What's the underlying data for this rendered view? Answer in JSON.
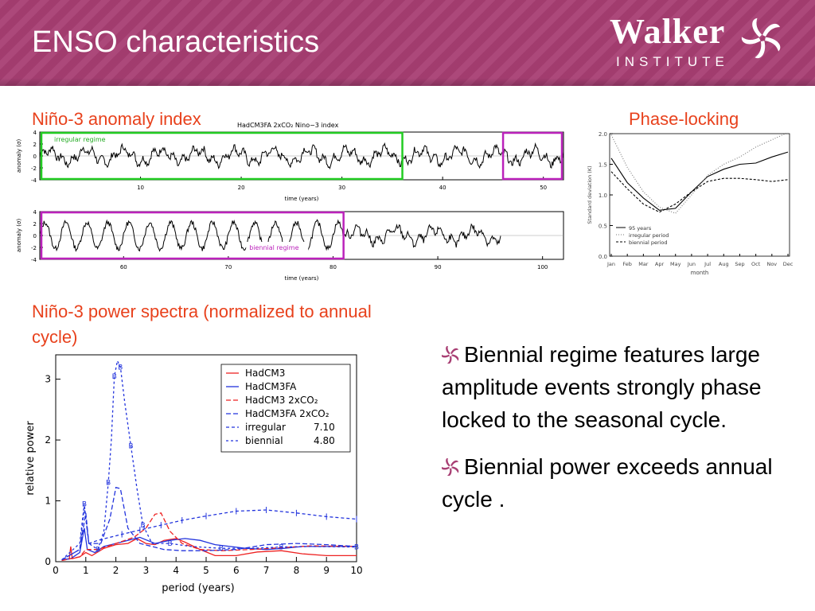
{
  "slide": {
    "title": "ENSO characteristics",
    "logo": {
      "word": "Walker",
      "sub": "INSTITUTE"
    },
    "labels": {
      "nino3_index": "Niño-3 anomaly index",
      "phase_locking": "Phase-locking",
      "power_spectra": "Niño-3 power spectra (normalized to annual cycle)"
    },
    "bullets": [
      "Biennial regime features large amplitude events strongly phase locked to the seasonal cycle.",
      "Biennial power exceeds annual cycle ."
    ],
    "colors": {
      "header": "#a83e73",
      "accent_text": "#e8411c",
      "regime_green": "#22cc22",
      "regime_magenta": "#bb22bb"
    }
  },
  "chart_data": [
    {
      "type": "line",
      "title": "HadCM3FA 2xCO₂ Nino−3 index",
      "xlabel": "time (years)",
      "ylabel": "anomaly (σ)",
      "xlim": [
        0,
        52
      ],
      "ylim": [
        -4,
        4
      ],
      "xticks": [
        10,
        20,
        30,
        40,
        50
      ],
      "yticks": [
        4,
        2,
        0,
        -2,
        -4
      ],
      "annotations": [
        {
          "text": "irregular regime",
          "x_range": [
            0,
            36
          ]
        },
        {
          "text": "",
          "x_range": [
            46,
            52
          ]
        }
      ]
    },
    {
      "type": "line",
      "xlabel": "time (years)",
      "ylabel": "anomaly (σ)",
      "xlim": [
        52,
        102
      ],
      "ylim": [
        -4,
        4
      ],
      "xticks": [
        60,
        70,
        80,
        90,
        100
      ],
      "yticks": [
        4,
        2,
        0,
        -2,
        -4
      ],
      "data_end": 96,
      "annotations": [
        {
          "text": "biennial regime",
          "x_range": [
            52,
            81
          ]
        }
      ]
    },
    {
      "type": "line",
      "xlabel": "month",
      "ylabel": "Standard deviation (K)",
      "categories": [
        "Jan",
        "Feb",
        "Mar",
        "Apr",
        "May",
        "Jun",
        "Jul",
        "Aug",
        "Sep",
        "Oct",
        "Nov",
        "Dec"
      ],
      "ylim": [
        0,
        2
      ],
      "yticks": [
        "2.0",
        "1.5",
        "1.0",
        "0.5",
        "0.0"
      ],
      "series": [
        {
          "name": "95 years",
          "style": "solid",
          "values": [
            1.6,
            1.2,
            0.95,
            0.75,
            0.78,
            1.05,
            1.3,
            1.42,
            1.5,
            1.52,
            1.62,
            1.7
          ]
        },
        {
          "name": "irregular period",
          "style": "dotted",
          "values": [
            1.98,
            1.45,
            1.05,
            0.8,
            0.7,
            1.0,
            1.32,
            1.5,
            1.62,
            1.78,
            1.9,
            2.02
          ]
        },
        {
          "name": "biennial period",
          "style": "dashed",
          "values": [
            1.38,
            1.1,
            0.85,
            0.72,
            0.85,
            1.05,
            1.22,
            1.27,
            1.27,
            1.25,
            1.22,
            1.25
          ]
        }
      ],
      "legend": "bottom-left"
    },
    {
      "type": "line",
      "xlabel": "period (years)",
      "ylabel": "relative power",
      "xlim": [
        0,
        10
      ],
      "ylim": [
        0,
        3.4
      ],
      "xticks": [
        0,
        1,
        2,
        3,
        4,
        5,
        6,
        7,
        8,
        9,
        10
      ],
      "yticks": [
        0,
        1,
        2,
        3
      ],
      "legend": "top-right",
      "series": [
        {
          "name": "HadCM3",
          "color": "#ee2222",
          "style": "solid",
          "points": [
            [
              0.2,
              0.02
            ],
            [
              0.45,
              0.05
            ],
            [
              0.5,
              0.25
            ],
            [
              0.55,
              0.05
            ],
            [
              0.8,
              0.08
            ],
            [
              1,
              0.15
            ],
            [
              1.2,
              0.1
            ],
            [
              1.6,
              0.22
            ],
            [
              2,
              0.28
            ],
            [
              2.4,
              0.3
            ],
            [
              2.7,
              0.38
            ],
            [
              3.0,
              0.3
            ],
            [
              3.3,
              0.28
            ],
            [
              3.6,
              0.35
            ],
            [
              4.0,
              0.38
            ],
            [
              4.3,
              0.32
            ],
            [
              4.8,
              0.2
            ],
            [
              5.3,
              0.1
            ],
            [
              6,
              0.1
            ],
            [
              6.7,
              0.16
            ],
            [
              7.5,
              0.18
            ],
            [
              8.2,
              0.13
            ],
            [
              9,
              0.1
            ],
            [
              10,
              0.1
            ]
          ]
        },
        {
          "name": "HadCM3FA",
          "color": "#2233dd",
          "style": "solid",
          "points": [
            [
              0.2,
              0.03
            ],
            [
              0.5,
              0.05
            ],
            [
              0.8,
              0.15
            ],
            [
              0.95,
              0.55
            ],
            [
              1.05,
              0.2
            ],
            [
              1.3,
              0.15
            ],
            [
              1.6,
              0.25
            ],
            [
              2,
              0.3
            ],
            [
              2.4,
              0.35
            ],
            [
              2.8,
              0.4
            ],
            [
              3.3,
              0.3
            ],
            [
              3.8,
              0.35
            ],
            [
              4.3,
              0.38
            ],
            [
              4.8,
              0.35
            ],
            [
              5.3,
              0.28
            ],
            [
              5.8,
              0.25
            ],
            [
              6.3,
              0.22
            ],
            [
              7,
              0.2
            ],
            [
              7.6,
              0.22
            ],
            [
              8.2,
              0.25
            ],
            [
              9,
              0.25
            ],
            [
              10,
              0.25
            ]
          ]
        },
        {
          "name": "HadCM3 2xCO₂",
          "color": "#ee2222",
          "style": "dashed",
          "points": [
            [
              0.2,
              0.02
            ],
            [
              0.8,
              0.08
            ],
            [
              1,
              0.2
            ],
            [
              1.4,
              0.2
            ],
            [
              2,
              0.3
            ],
            [
              2.6,
              0.4
            ],
            [
              3.0,
              0.55
            ],
            [
              3.3,
              0.78
            ],
            [
              3.5,
              0.8
            ],
            [
              3.8,
              0.5
            ],
            [
              4.2,
              0.3
            ],
            [
              4.8,
              0.2
            ],
            [
              5.5,
              0.18
            ],
            [
              6.5,
              0.2
            ],
            [
              7.5,
              0.23
            ],
            [
              8.5,
              0.26
            ],
            [
              10,
              0.25
            ]
          ]
        },
        {
          "name": "HadCM3FA 2xCO₂",
          "color": "#2233dd",
          "style": "dashed",
          "points": [
            [
              0.2,
              0.03
            ],
            [
              0.8,
              0.2
            ],
            [
              1.0,
              0.8
            ],
            [
              1.1,
              0.3
            ],
            [
              1.5,
              0.3
            ],
            [
              1.8,
              0.7
            ],
            [
              2.0,
              1.22
            ],
            [
              2.15,
              1.2
            ],
            [
              2.4,
              0.55
            ],
            [
              2.8,
              0.3
            ],
            [
              3.2,
              0.25
            ],
            [
              3.6,
              0.2
            ],
            [
              4.2,
              0.18
            ],
            [
              5,
              0.18
            ],
            [
              6,
              0.2
            ],
            [
              7,
              0.28
            ],
            [
              8,
              0.3
            ],
            [
              9,
              0.28
            ],
            [
              10,
              0.25
            ]
          ]
        },
        {
          "name": "irregular",
          "value_label": "7.10",
          "color": "#2233dd",
          "style": "dashed-marker-bar",
          "points": [
            [
              0.2,
              0.03
            ],
            [
              0.8,
              0.2
            ],
            [
              0.95,
              0.9
            ],
            [
              1.1,
              0.3
            ],
            [
              1.4,
              0.35
            ],
            [
              1.8,
              0.4
            ],
            [
              2.2,
              0.45
            ],
            [
              2.8,
              0.52
            ],
            [
              3.5,
              0.6
            ],
            [
              4.2,
              0.68
            ],
            [
              5,
              0.75
            ],
            [
              6,
              0.83
            ],
            [
              7,
              0.85
            ],
            [
              8,
              0.8
            ],
            [
              9,
              0.74
            ],
            [
              10,
              0.7
            ]
          ]
        },
        {
          "name": "biennial",
          "value_label": "4.80",
          "color": "#2233dd",
          "style": "dashed-marker-B",
          "points": [
            [
              0.2,
              0.03
            ],
            [
              0.8,
              0.3
            ],
            [
              0.95,
              0.95
            ],
            [
              1.1,
              0.3
            ],
            [
              1.4,
              0.2
            ],
            [
              1.6,
              0.5
            ],
            [
              1.75,
              1.3
            ],
            [
              1.85,
              2.0
            ],
            [
              1.95,
              3.05
            ],
            [
              2.05,
              3.3
            ],
            [
              2.15,
              3.2
            ],
            [
              2.3,
              2.6
            ],
            [
              2.5,
              1.9
            ],
            [
              2.7,
              1.2
            ],
            [
              2.9,
              0.6
            ],
            [
              3.2,
              0.3
            ],
            [
              3.8,
              0.3
            ],
            [
              4.5,
              0.25
            ],
            [
              5.5,
              0.22
            ],
            [
              6.5,
              0.22
            ],
            [
              7.5,
              0.24
            ],
            [
              8.5,
              0.25
            ],
            [
              10,
              0.24
            ]
          ]
        }
      ]
    }
  ]
}
